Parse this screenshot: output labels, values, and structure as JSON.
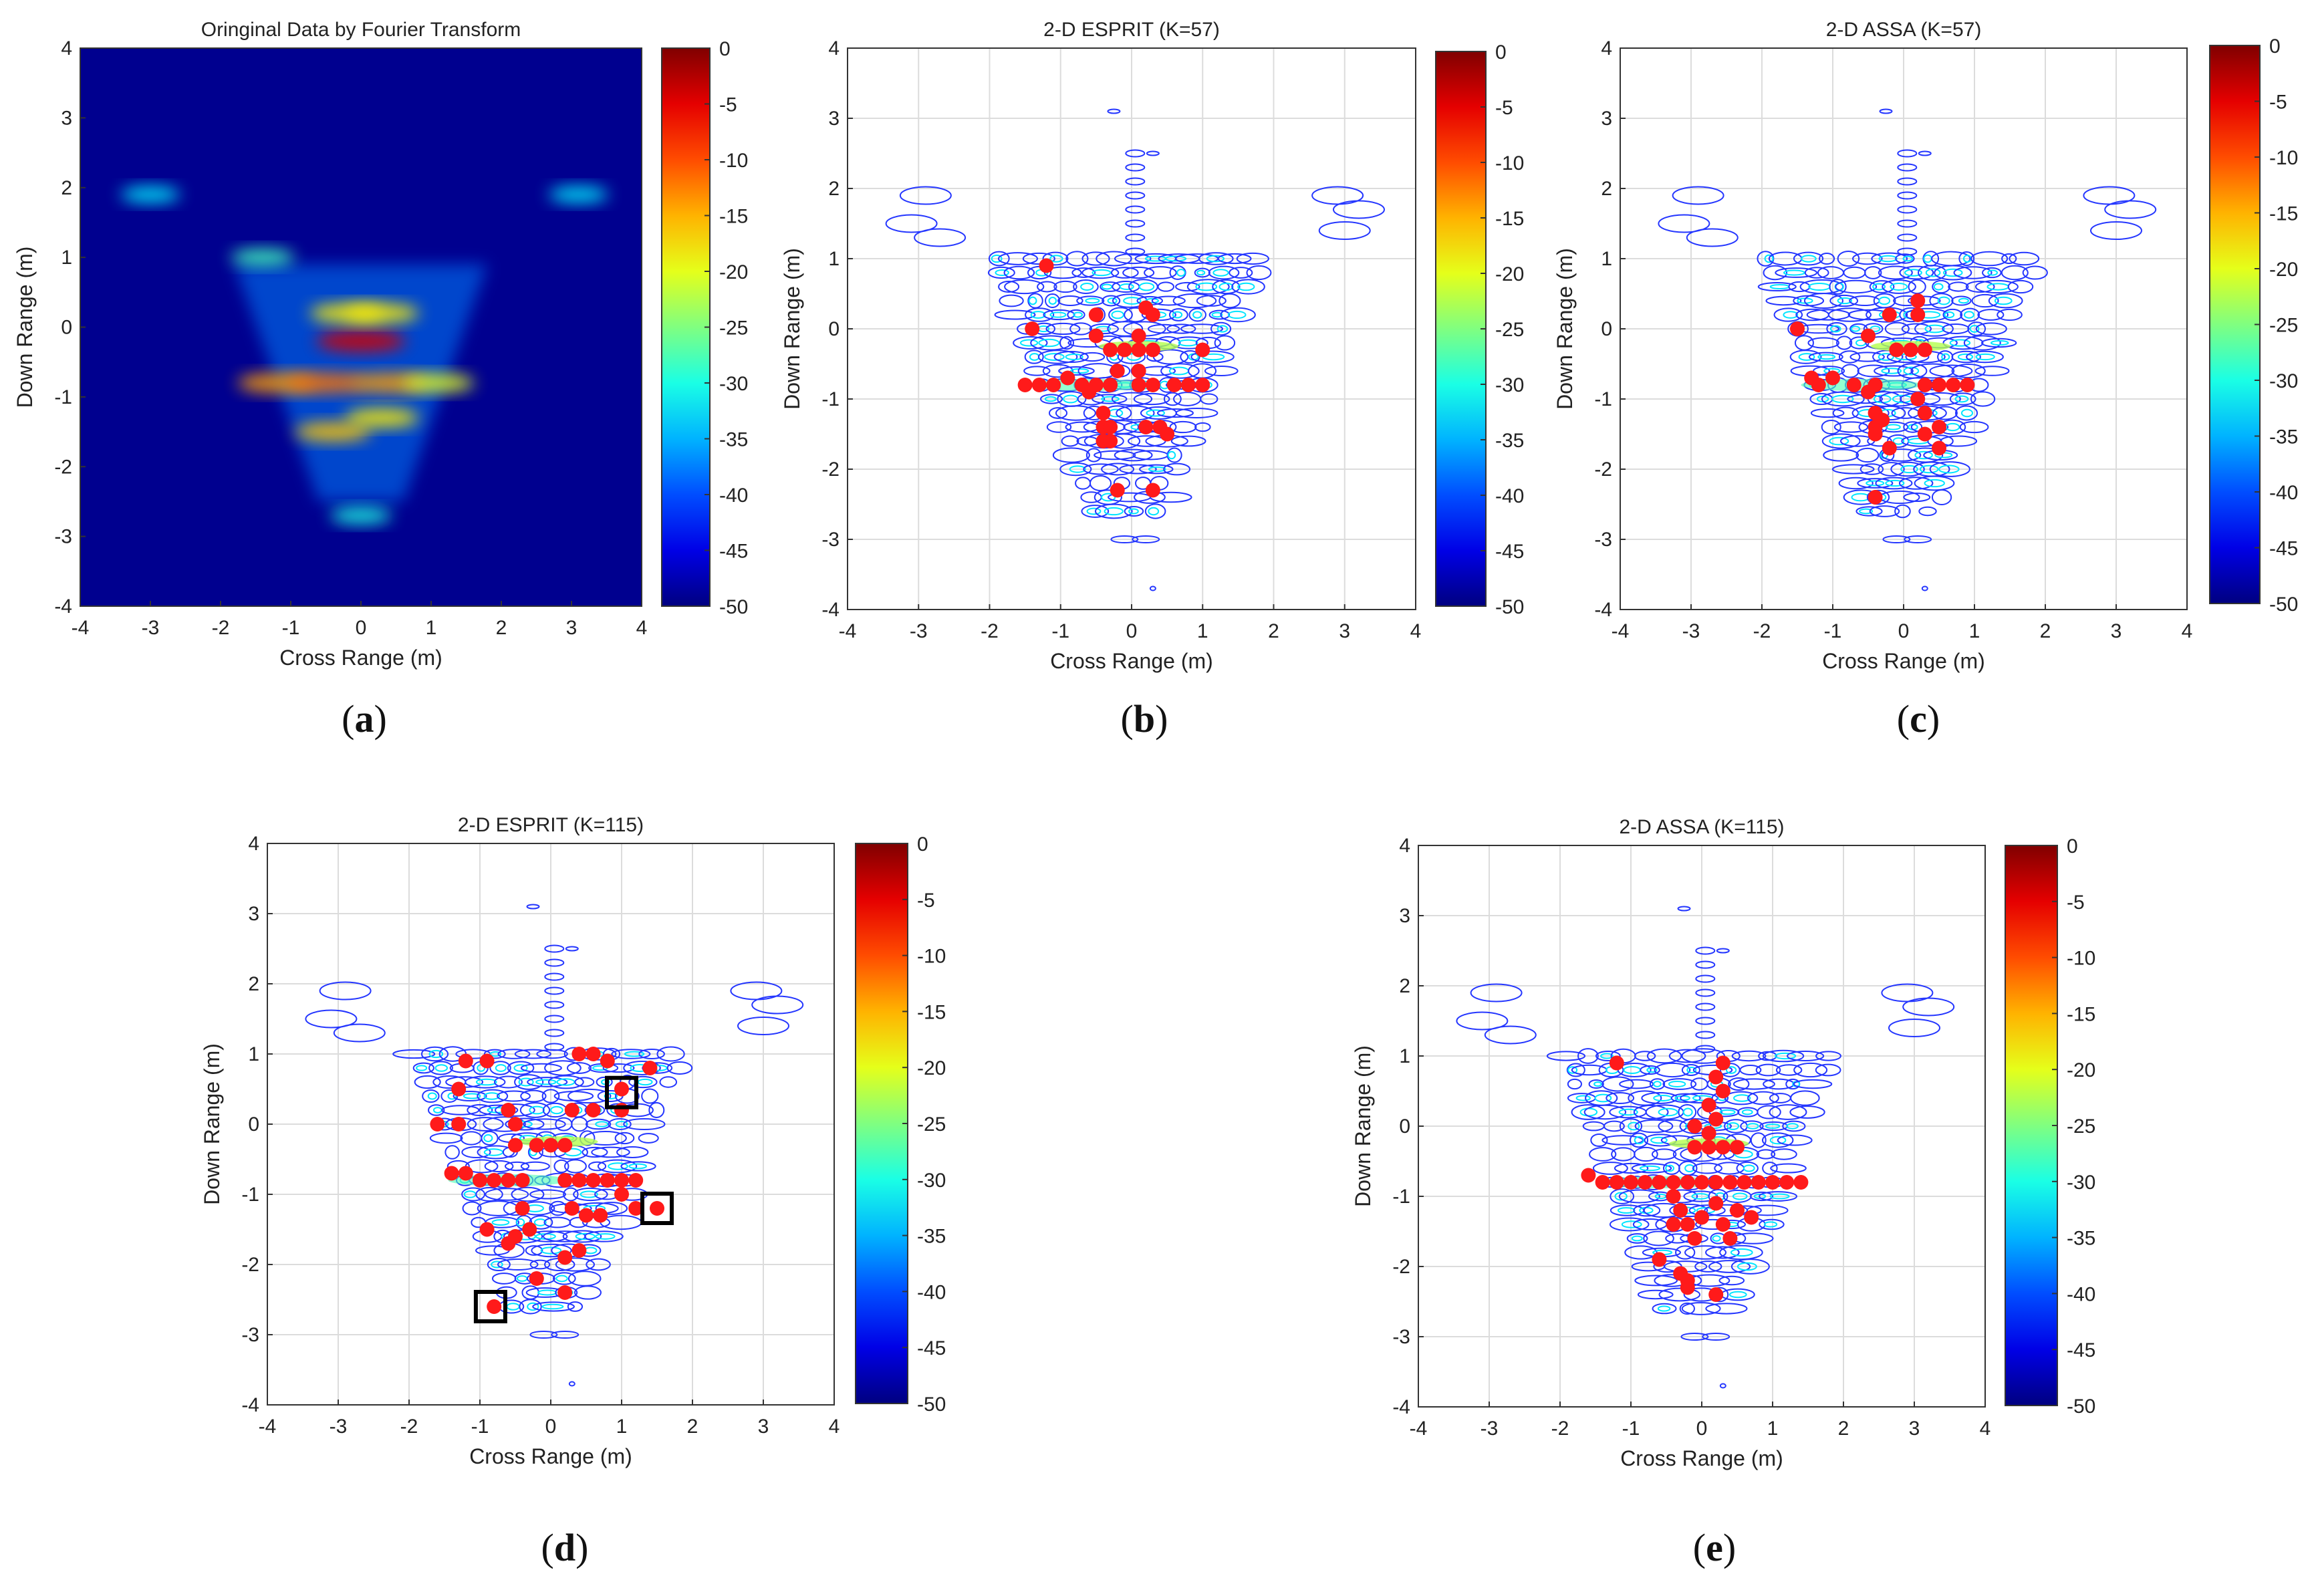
{
  "figure": {
    "colorbar": {
      "ticks": [
        0,
        -5,
        -10,
        -15,
        -20,
        -25,
        -30,
        -35,
        -40,
        -45,
        -50
      ],
      "range": [
        -50,
        0
      ],
      "colormap": "jet"
    },
    "colors": {
      "contour": "#2436ff",
      "scatter": "#ff1a1a",
      "background_fft": "#00008f",
      "grid": "#dcdcdc",
      "highlight_box": "#000000"
    }
  },
  "chart_data": [
    {
      "id": "a",
      "type": "heatmap",
      "title": "Oringinal Data by Fourier Transform",
      "caption_letter": "a",
      "xlabel": "Cross Range (m)",
      "ylabel": "Down Range (m)",
      "xlim": [
        -4,
        4
      ],
      "ylim": [
        -4,
        4
      ],
      "xticks": [
        -4,
        -3,
        -2,
        -1,
        0,
        1,
        2,
        3,
        4
      ],
      "yticks": [
        4,
        3,
        2,
        1,
        0,
        -1,
        -2,
        -3,
        -4
      ],
      "grid": false,
      "colorbar_range": [
        -50,
        0
      ],
      "hotspots": [
        {
          "x": 0.0,
          "y": -0.2,
          "level": -4
        },
        {
          "x": -1.2,
          "y": -0.8,
          "level": -14
        },
        {
          "x": -0.5,
          "y": -0.8,
          "level": -12
        },
        {
          "x": 0.4,
          "y": -0.8,
          "level": -14
        },
        {
          "x": 1.1,
          "y": -0.8,
          "level": -20
        },
        {
          "x": -0.2,
          "y": 0.2,
          "level": -18
        },
        {
          "x": 0.3,
          "y": 0.2,
          "level": -18
        },
        {
          "x": -0.4,
          "y": -1.5,
          "level": -16
        },
        {
          "x": 0.3,
          "y": -1.3,
          "level": -18
        },
        {
          "x": -1.4,
          "y": 1.0,
          "level": -28
        },
        {
          "x": 0.0,
          "y": -2.7,
          "level": -30
        },
        {
          "x": -3.0,
          "y": 1.9,
          "level": -32
        },
        {
          "x": 3.1,
          "y": 1.9,
          "level": -32
        }
      ]
    },
    {
      "id": "b",
      "type": "scatter",
      "title": "2-D ESPRIT (K=57)",
      "caption_letter": "b",
      "xlabel": "Cross Range (m)",
      "ylabel": "Down Range (m)",
      "xlim": [
        -4,
        4
      ],
      "ylim": [
        -4,
        4
      ],
      "xticks": [
        -4,
        -3,
        -2,
        -1,
        0,
        1,
        2,
        3,
        4
      ],
      "yticks": [
        4,
        3,
        2,
        1,
        0,
        -1,
        -2,
        -3,
        -4
      ],
      "grid": true,
      "colorbar_range": [
        -50,
        0
      ],
      "points": [
        [
          -1.2,
          0.9
        ],
        [
          -0.5,
          0.2
        ],
        [
          0.2,
          0.3
        ],
        [
          0.3,
          0.2
        ],
        [
          -1.4,
          0.0
        ],
        [
          -0.5,
          -0.1
        ],
        [
          0.1,
          -0.1
        ],
        [
          -0.3,
          -0.3
        ],
        [
          -0.1,
          -0.3
        ],
        [
          0.1,
          -0.3
        ],
        [
          0.3,
          -0.3
        ],
        [
          1.0,
          -0.3
        ],
        [
          -0.2,
          -0.6
        ],
        [
          0.1,
          -0.6
        ],
        [
          -1.5,
          -0.8
        ],
        [
          -1.3,
          -0.8
        ],
        [
          -1.1,
          -0.8
        ],
        [
          -0.9,
          -0.7
        ],
        [
          -0.7,
          -0.8
        ],
        [
          -0.5,
          -0.8
        ],
        [
          -0.3,
          -0.8
        ],
        [
          0.1,
          -0.8
        ],
        [
          0.3,
          -0.8
        ],
        [
          0.6,
          -0.8
        ],
        [
          0.8,
          -0.8
        ],
        [
          1.0,
          -0.8
        ],
        [
          -0.6,
          -0.9
        ],
        [
          -0.4,
          -1.2
        ],
        [
          -0.4,
          -1.4
        ],
        [
          -0.4,
          -1.6
        ],
        [
          -0.3,
          -1.6
        ],
        [
          -0.3,
          -1.4
        ],
        [
          0.2,
          -1.4
        ],
        [
          0.4,
          -1.4
        ],
        [
          0.5,
          -1.5
        ],
        [
          -0.2,
          -2.3
        ],
        [
          0.3,
          -2.3
        ]
      ],
      "boxes": []
    },
    {
      "id": "c",
      "type": "scatter",
      "title": "2-D ASSA (K=57)",
      "caption_letter": "c",
      "xlabel": "Cross Range (m)",
      "ylabel": "Down Range (m)",
      "xlim": [
        -4,
        4
      ],
      "ylim": [
        -4,
        4
      ],
      "xticks": [
        -4,
        -3,
        -2,
        -1,
        0,
        1,
        2,
        3,
        4
      ],
      "yticks": [
        4,
        3,
        2,
        1,
        0,
        -1,
        -2,
        -3,
        -4
      ],
      "grid": true,
      "colorbar_range": [
        -50,
        0
      ],
      "points": [
        [
          0.2,
          0.4
        ],
        [
          -0.2,
          0.2
        ],
        [
          0.2,
          0.2
        ],
        [
          -1.5,
          0.0
        ],
        [
          -0.5,
          -0.1
        ],
        [
          -0.1,
          -0.3
        ],
        [
          0.1,
          -0.3
        ],
        [
          0.3,
          -0.3
        ],
        [
          -1.3,
          -0.7
        ],
        [
          -1.2,
          -0.8
        ],
        [
          -1.0,
          -0.7
        ],
        [
          -0.7,
          -0.8
        ],
        [
          -0.5,
          -0.9
        ],
        [
          -0.4,
          -0.8
        ],
        [
          0.3,
          -0.8
        ],
        [
          0.5,
          -0.8
        ],
        [
          0.7,
          -0.8
        ],
        [
          0.9,
          -0.8
        ],
        [
          -0.4,
          -1.2
        ],
        [
          -0.4,
          -1.4
        ],
        [
          -0.4,
          -1.5
        ],
        [
          -0.3,
          -1.3
        ],
        [
          0.2,
          -1.0
        ],
        [
          0.3,
          -1.2
        ],
        [
          0.3,
          -1.5
        ],
        [
          0.5,
          -1.4
        ],
        [
          0.5,
          -1.7
        ],
        [
          -0.2,
          -1.7
        ],
        [
          -0.4,
          -2.4
        ]
      ],
      "boxes": []
    },
    {
      "id": "d",
      "type": "scatter",
      "title": "2-D ESPRIT (K=115)",
      "caption_letter": "d",
      "xlabel": "Cross Range (m)",
      "ylabel": "Down Range (m)",
      "xlim": [
        -4,
        4
      ],
      "ylim": [
        -4,
        4
      ],
      "xticks": [
        -4,
        -3,
        -2,
        -1,
        0,
        1,
        2,
        3,
        4
      ],
      "yticks": [
        4,
        3,
        2,
        1,
        0,
        -1,
        -2,
        -3,
        -4
      ],
      "grid": true,
      "colorbar_range": [
        -50,
        0
      ],
      "points": [
        [
          -1.2,
          0.9
        ],
        [
          -0.9,
          0.9
        ],
        [
          0.4,
          1.0
        ],
        [
          0.6,
          1.0
        ],
        [
          0.8,
          0.9
        ],
        [
          1.4,
          0.8
        ],
        [
          -1.3,
          0.5
        ],
        [
          1.0,
          0.5
        ],
        [
          -0.6,
          0.2
        ],
        [
          0.3,
          0.2
        ],
        [
          0.6,
          0.2
        ],
        [
          1.0,
          0.2
        ],
        [
          -1.6,
          0.0
        ],
        [
          -1.3,
          0.0
        ],
        [
          -0.5,
          0.0
        ],
        [
          -1.4,
          -0.7
        ],
        [
          -1.2,
          -0.7
        ],
        [
          -1.0,
          -0.8
        ],
        [
          -0.8,
          -0.8
        ],
        [
          -0.6,
          -0.8
        ],
        [
          -0.4,
          -0.8
        ],
        [
          -0.2,
          -0.3
        ],
        [
          0.0,
          -0.3
        ],
        [
          0.2,
          -0.3
        ],
        [
          -0.5,
          -0.3
        ],
        [
          0.2,
          -0.8
        ],
        [
          0.4,
          -0.8
        ],
        [
          0.6,
          -0.8
        ],
        [
          0.8,
          -0.8
        ],
        [
          1.0,
          -0.8
        ],
        [
          1.2,
          -0.8
        ],
        [
          -0.4,
          -1.2
        ],
        [
          -0.3,
          -1.5
        ],
        [
          -0.5,
          -1.6
        ],
        [
          0.3,
          -1.2
        ],
        [
          0.5,
          -1.3
        ],
        [
          0.7,
          -1.3
        ],
        [
          1.0,
          -1.0
        ],
        [
          1.2,
          -1.2
        ],
        [
          1.5,
          -1.2
        ],
        [
          -0.9,
          -1.5
        ],
        [
          -0.6,
          -1.7
        ],
        [
          0.4,
          -1.8
        ],
        [
          0.2,
          -1.9
        ],
        [
          -0.2,
          -2.2
        ],
        [
          0.2,
          -2.4
        ],
        [
          -0.8,
          -2.6
        ]
      ],
      "boxes": [
        [
          1.0,
          0.45
        ],
        [
          1.5,
          -1.2
        ],
        [
          -0.85,
          -2.6
        ]
      ]
    },
    {
      "id": "e",
      "type": "scatter",
      "title": "2-D ASSA (K=115)",
      "caption_letter": "e",
      "xlabel": "Cross Range (m)",
      "ylabel": "Down Range (m)",
      "xlim": [
        -4,
        4
      ],
      "ylim": [
        -4,
        4
      ],
      "xticks": [
        -4,
        -3,
        -2,
        -1,
        0,
        1,
        2,
        3,
        4
      ],
      "yticks": [
        4,
        3,
        2,
        1,
        0,
        -1,
        -2,
        -3,
        -4
      ],
      "grid": true,
      "colorbar_range": [
        -50,
        0
      ],
      "points": [
        [
          -1.2,
          0.9
        ],
        [
          0.3,
          0.9
        ],
        [
          0.2,
          0.7
        ],
        [
          0.3,
          0.5
        ],
        [
          0.1,
          0.3
        ],
        [
          0.2,
          0.1
        ],
        [
          -0.1,
          0.0
        ],
        [
          0.1,
          -0.1
        ],
        [
          -0.1,
          -0.3
        ],
        [
          0.1,
          -0.3
        ],
        [
          0.3,
          -0.3
        ],
        [
          0.5,
          -0.3
        ],
        [
          -1.6,
          -0.7
        ],
        [
          -1.4,
          -0.8
        ],
        [
          -1.2,
          -0.8
        ],
        [
          -1.0,
          -0.8
        ],
        [
          -0.8,
          -0.8
        ],
        [
          -0.6,
          -0.8
        ],
        [
          -0.4,
          -0.8
        ],
        [
          -0.2,
          -0.8
        ],
        [
          0.0,
          -0.8
        ],
        [
          0.2,
          -0.8
        ],
        [
          0.4,
          -0.8
        ],
        [
          0.6,
          -0.8
        ],
        [
          0.8,
          -0.8
        ],
        [
          1.0,
          -0.8
        ],
        [
          1.2,
          -0.8
        ],
        [
          1.4,
          -0.8
        ],
        [
          -0.4,
          -1.0
        ],
        [
          -0.3,
          -1.2
        ],
        [
          -0.2,
          -1.4
        ],
        [
          -0.4,
          -1.4
        ],
        [
          -0.1,
          -1.6
        ],
        [
          0.0,
          -1.3
        ],
        [
          0.2,
          -1.1
        ],
        [
          0.3,
          -1.4
        ],
        [
          0.4,
          -1.6
        ],
        [
          0.5,
          -1.2
        ],
        [
          0.7,
          -1.3
        ],
        [
          -0.6,
          -1.9
        ],
        [
          -0.3,
          -2.1
        ],
        [
          -0.2,
          -2.3
        ],
        [
          0.2,
          -2.4
        ],
        [
          -0.2,
          -2.2
        ]
      ],
      "boxes": []
    }
  ]
}
